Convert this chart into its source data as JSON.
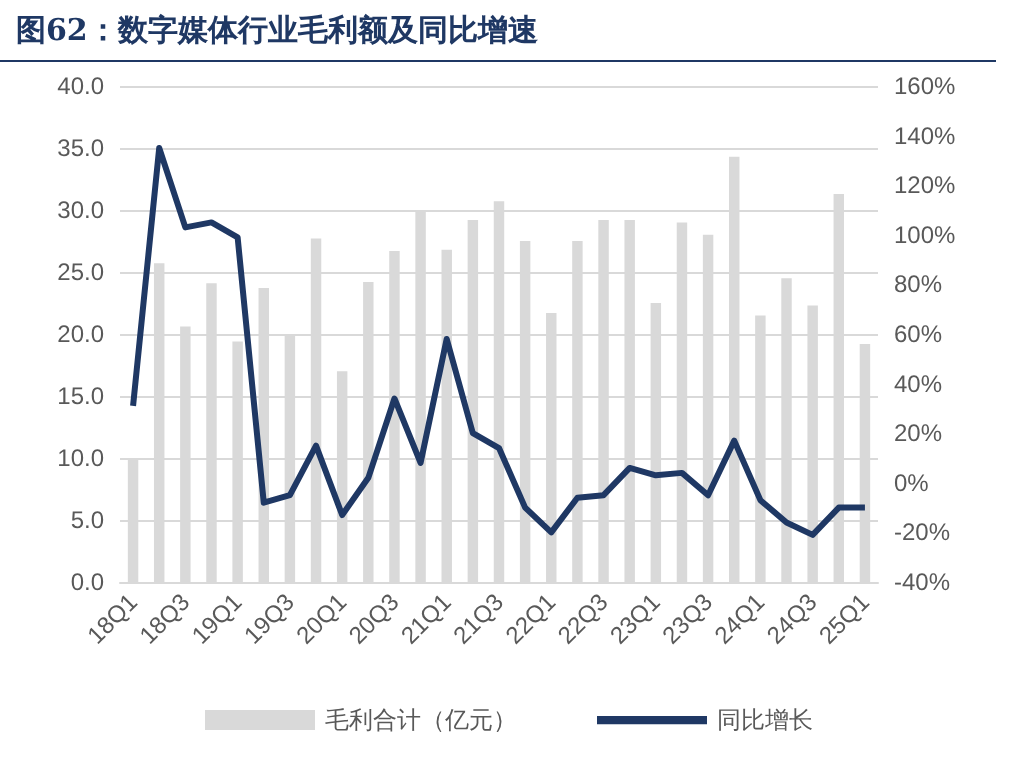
{
  "chart_data": {
    "type": "bar",
    "title": "图62：数字媒体行业毛利额及同比增速",
    "categories": [
      "18Q1",
      null,
      "18Q3",
      null,
      "19Q1",
      null,
      "19Q3",
      null,
      "20Q1",
      null,
      "20Q3",
      null,
      "21Q1",
      null,
      "21Q3",
      null,
      "22Q1",
      null,
      "22Q3",
      null,
      "23Q1",
      null,
      "23Q3",
      null,
      "24Q1",
      null,
      "24Q3",
      null,
      "25Q1"
    ],
    "series": [
      {
        "name": "毛利合计（亿元）",
        "color": "#d9d9d9",
        "values": [
          10.0,
          25.7,
          20.6,
          24.1,
          19.4,
          23.7,
          19.9,
          27.7,
          17.0,
          24.2,
          26.7,
          30.0,
          26.8,
          29.2,
          30.7,
          27.5,
          21.7,
          27.5,
          29.2,
          29.2,
          22.5,
          29.0,
          28.0,
          34.3,
          21.5,
          24.5,
          22.3,
          31.3,
          19.2
        ]
      },
      {
        "name": "同比增长",
        "type": "line",
        "axis": "y2",
        "color": "#1f3864",
        "values": [
          31,
          135,
          103,
          105,
          99,
          -8,
          -5,
          15,
          -13,
          2,
          34,
          8,
          58,
          20,
          14,
          -10,
          -20,
          -6,
          -5,
          6,
          3,
          4,
          -5,
          17,
          -7,
          -16,
          -21,
          -10,
          -10
        ]
      }
    ],
    "ylim": [
      0,
      40
    ],
    "yticks": [
      {
        "value": 0,
        "label": "0.0"
      },
      {
        "value": 5,
        "label": "5.0"
      },
      {
        "value": 10,
        "label": "10.0"
      },
      {
        "value": 15,
        "label": "15.0"
      },
      {
        "value": 20,
        "label": "20.0"
      },
      {
        "value": 25,
        "label": "25.0"
      },
      {
        "value": 30,
        "label": "30.0"
      },
      {
        "value": 35,
        "label": "35.0"
      },
      {
        "value": 40,
        "label": "40.0"
      }
    ],
    "y2lim": [
      -40,
      160
    ],
    "y2ticks": [
      {
        "value": -40,
        "label": "-40%"
      },
      {
        "value": -20,
        "label": "-20%"
      },
      {
        "value": 0,
        "label": "0%"
      },
      {
        "value": 20,
        "label": "20%"
      },
      {
        "value": 40,
        "label": "40%"
      },
      {
        "value": 60,
        "label": "60%"
      },
      {
        "value": 80,
        "label": "80%"
      },
      {
        "value": 100,
        "label": "100%"
      },
      {
        "value": 120,
        "label": "120%"
      },
      {
        "value": 140,
        "label": "140%"
      },
      {
        "value": 160,
        "label": "160%"
      }
    ],
    "grid": "y",
    "legend": "bottom",
    "marker": "none",
    "line_style": "solid"
  }
}
